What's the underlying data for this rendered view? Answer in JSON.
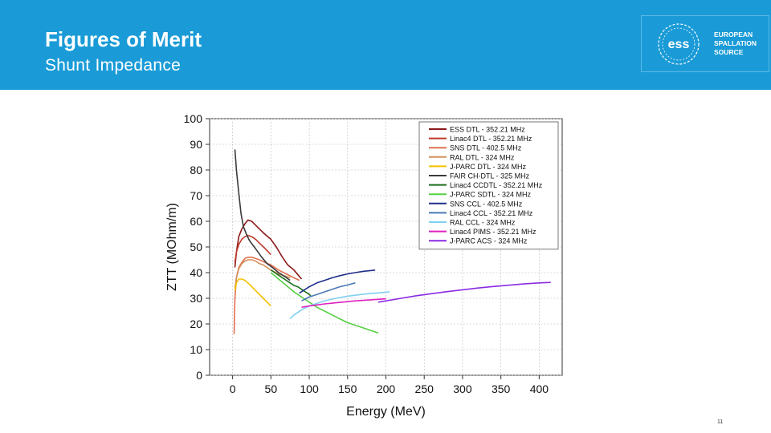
{
  "header": {
    "title": "Figures of Merit",
    "subtitle": "Shunt Impedance",
    "logo": {
      "mark_text": "ess",
      "lines": [
        "EUROPEAN",
        "SPALLATION",
        "SOURCE"
      ]
    }
  },
  "footer": {
    "page_number": "11"
  },
  "chart_data": {
    "type": "line",
    "title": "",
    "xlabel": "Energy (MeV)",
    "ylabel": "ZTT (MOhm/m)",
    "xlim": [
      -30,
      430
    ],
    "ylim": [
      0,
      100
    ],
    "xticks": [
      0,
      50,
      100,
      150,
      200,
      250,
      300,
      350,
      400
    ],
    "yticks": [
      0,
      10,
      20,
      30,
      40,
      50,
      60,
      70,
      80,
      90,
      100
    ],
    "legend_position": "top-right",
    "series": [
      {
        "name": "ESS DTL - 352.21 MHz",
        "color": "#8b1a1a",
        "x": [
          3,
          5,
          8,
          12,
          16,
          20,
          25,
          30,
          35,
          42,
          50,
          57,
          65,
          72,
          80,
          90
        ],
        "y": [
          42,
          48,
          54,
          57,
          59,
          60.5,
          60,
          58.5,
          57,
          55,
          53,
          50,
          46,
          43,
          41,
          37.5
        ]
      },
      {
        "name": "Linac4 DTL - 352.21 MHz",
        "color": "#c0392b",
        "x": [
          3,
          5,
          8,
          12,
          16,
          20,
          25,
          30,
          35,
          42,
          50
        ],
        "y": [
          44,
          48,
          51,
          53,
          54,
          54.5,
          54,
          53,
          51.5,
          49.5,
          47
        ]
      },
      {
        "name": "SNS DTL - 402.5 MHz",
        "color": "#e07050",
        "x": [
          2,
          3,
          5,
          8,
          12,
          16,
          20,
          25,
          30,
          35,
          42,
          50,
          60,
          70,
          80,
          87
        ],
        "y": [
          16,
          30,
          38,
          42,
          44,
          45.5,
          46,
          46,
          45.5,
          45,
          44,
          43,
          41,
          39.5,
          38,
          37
        ]
      },
      {
        "name": "RAL DTL - 324 MHz",
        "color": "#d4915a",
        "x": [
          3,
          5,
          8,
          12,
          16,
          20,
          25,
          30,
          35,
          40,
          50,
          60,
          70,
          75
        ],
        "y": [
          34,
          38,
          41.5,
          43.5,
          44.5,
          45,
          45,
          44.5,
          43.5,
          43,
          41,
          39.5,
          38.5,
          38
        ]
      },
      {
        "name": "J-PARC DTL - 324 MHz",
        "color": "#f5c000",
        "x": [
          3,
          5,
          8,
          12,
          16,
          20,
          25,
          30,
          35,
          40,
          45,
          50
        ],
        "y": [
          33,
          36,
          37.5,
          37.5,
          37,
          36,
          34.5,
          33,
          31.5,
          30,
          28.5,
          27
        ]
      },
      {
        "name": "FAIR CH-DTL - 325 MHz",
        "color": "#3a3a3a",
        "x": [
          3,
          5,
          8,
          11,
          14,
          18,
          22,
          27,
          32,
          38,
          45,
          52,
          60,
          68,
          75
        ],
        "y": [
          88,
          80,
          71,
          63,
          58,
          55,
          52.5,
          50.5,
          48.5,
          46,
          43.5,
          42,
          40,
          38.5,
          37
        ]
      },
      {
        "name": "Linac4 CCDTL - 352.21 MHz",
        "color": "#1a6e1a",
        "x": [
          50,
          55,
          60,
          65,
          70,
          75,
          80,
          85,
          90,
          95,
          100,
          102
        ],
        "y": [
          41,
          40,
          39,
          38,
          37,
          36,
          35,
          34.5,
          33.5,
          32.5,
          31.5,
          31
        ]
      },
      {
        "name": "J-PARC SDTL - 324 MHz",
        "color": "#55d040",
        "x": [
          50,
          60,
          70,
          80,
          90,
          100,
          110,
          120,
          130,
          140,
          150,
          160,
          170,
          180,
          190
        ],
        "y": [
          40,
          37.5,
          35,
          32.5,
          30.5,
          28.5,
          26.5,
          25,
          23.5,
          22,
          20.5,
          19.5,
          18.5,
          17.5,
          16.5
        ]
      },
      {
        "name": "SNS CCL - 402.5 MHz",
        "color": "#1f2f8a",
        "x": [
          87,
          100,
          110,
          120,
          130,
          140,
          150,
          160,
          170,
          180,
          186
        ],
        "y": [
          32,
          34.5,
          36,
          37,
          38,
          38.8,
          39.5,
          40,
          40.5,
          40.8,
          41
        ]
      },
      {
        "name": "Linac4 CCL - 352.21 MHz",
        "color": "#4a78b8",
        "x": [
          90,
          100,
          110,
          120,
          130,
          140,
          150,
          160
        ],
        "y": [
          29,
          30.5,
          31.5,
          32.5,
          33.5,
          34.5,
          35.2,
          36
        ]
      },
      {
        "name": "RAL CCL - 324 MHz",
        "color": "#80cff0",
        "x": [
          75,
          80,
          90,
          100,
          110,
          120,
          130,
          140,
          150,
          160,
          170,
          180,
          190,
          200,
          205
        ],
        "y": [
          22,
          23.5,
          25.5,
          27,
          28,
          29,
          29.7,
          30.3,
          30.8,
          31.2,
          31.6,
          31.9,
          32.1,
          32.4,
          32.5
        ]
      },
      {
        "name": "Linac4 PIMS - 352.21 MHz",
        "color": "#e020c0",
        "x": [
          90,
          100,
          110,
          120,
          130,
          140,
          150,
          160,
          170,
          180,
          190,
          200
        ],
        "y": [
          26.5,
          27,
          27.4,
          27.8,
          28.1,
          28.4,
          28.7,
          29,
          29.2,
          29.4,
          29.6,
          29.8
        ]
      },
      {
        "name": "J-PARC ACS - 324 MHz",
        "color": "#8a2be2",
        "x": [
          190,
          200,
          220,
          240,
          260,
          280,
          300,
          320,
          340,
          360,
          380,
          400,
          415
        ],
        "y": [
          28.5,
          29,
          30,
          31,
          31.8,
          32.6,
          33.3,
          34,
          34.6,
          35.1,
          35.6,
          36,
          36.2
        ]
      }
    ]
  }
}
